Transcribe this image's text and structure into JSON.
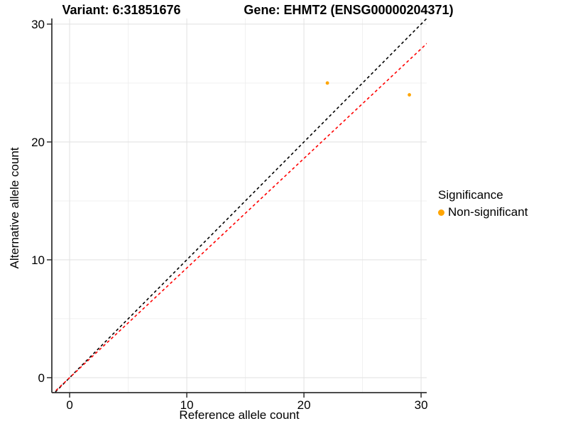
{
  "header": {
    "title_left": "Variant: 6:31851676",
    "title_right": "Gene: EHMT2 (ENSG00000204371)"
  },
  "chart_data": {
    "type": "scatter",
    "xlabel": "Reference allele count",
    "ylabel": "Alternative allele count",
    "xlim": [
      -1.52,
      30.48
    ],
    "ylim": [
      -1.27,
      30.48
    ],
    "x_ticks": [
      0,
      10,
      20,
      30
    ],
    "y_ticks": [
      0,
      10,
      20,
      30
    ],
    "x_minor_ticks": [
      5,
      15,
      25
    ],
    "y_minor_ticks": [
      5,
      15,
      25
    ],
    "grid": "major+minor",
    "series": [
      {
        "name": "Non-significant",
        "color": "#FFA500",
        "points": [
          {
            "x": 22,
            "y": 25
          },
          {
            "x": 29,
            "y": 24
          }
        ]
      }
    ],
    "reference_lines": [
      {
        "name": "identity",
        "slope": 1,
        "intercept": 0,
        "color": "#000000",
        "dash": "dashed"
      },
      {
        "name": "expected-ratio",
        "slope": 0.93,
        "intercept": 0,
        "color": "#FF0000",
        "dash": "dashed"
      }
    ],
    "legend": {
      "title": "Significance",
      "position": "right-center",
      "items": [
        {
          "label": "Non-significant",
          "color": "#FFA500"
        }
      ]
    },
    "colors": {
      "grid_major": "#E3E3E3",
      "grid_minor": "#F0F0F0",
      "axis_line": "#111111"
    }
  }
}
